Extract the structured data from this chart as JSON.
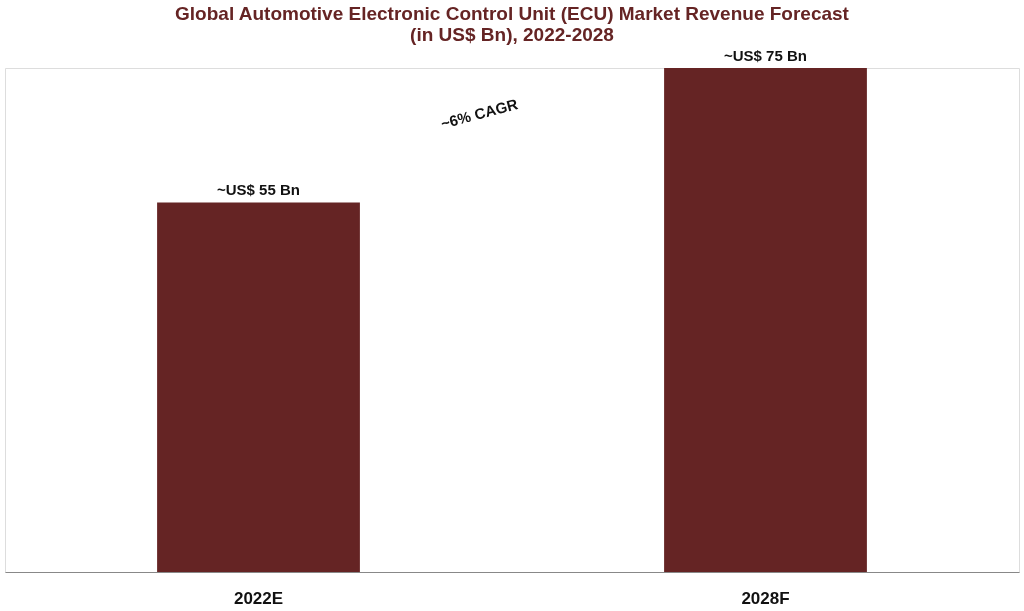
{
  "chart_data": {
    "type": "bar",
    "title": [
      "Global Automotive Electronic Control Unit (ECU) Market Revenue Forecast",
      "(in US$ Bn), 2022-2028"
    ],
    "categories": [
      "2022E",
      "2028F"
    ],
    "values": [
      55,
      75
    ],
    "value_labels": [
      "~US$ 55 Bn",
      "~US$ 75 Bn"
    ],
    "color": "#652424",
    "annotations": [
      "~6% CAGR"
    ],
    "tick_labels": "x",
    "grid": false
  }
}
